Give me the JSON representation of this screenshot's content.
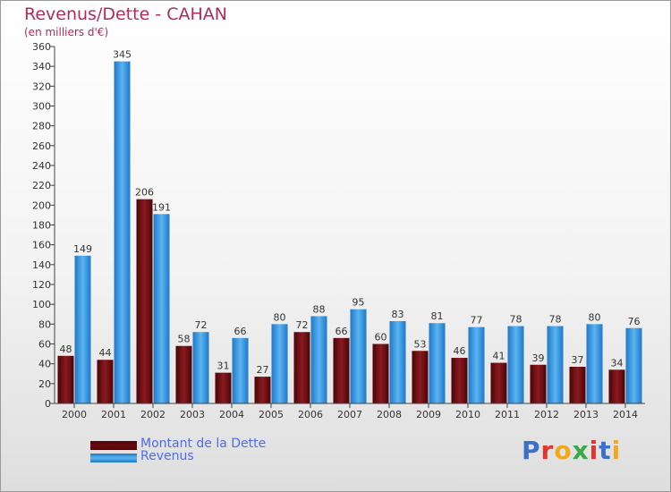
{
  "header": {
    "title": "Revenus/Dette - CAHAN",
    "subtitle": "(en milliers d'€)"
  },
  "colors": {
    "dette": "#6b0a0e",
    "revenus": "#2f8fdc",
    "title": "#b22a5b",
    "legend_text": "#4c6cf0"
  },
  "chart_data": {
    "type": "bar",
    "title": "Revenus/Dette - CAHAN",
    "subtitle": "(en milliers d'€)",
    "categories": [
      "2000",
      "2001",
      "2002",
      "2003",
      "2004",
      "2005",
      "2006",
      "2007",
      "2008",
      "2009",
      "2010",
      "2011",
      "2012",
      "2013",
      "2014"
    ],
    "series": [
      {
        "name": "Montant de la Dette",
        "values": [
          48,
          44,
          206,
          58,
          31,
          27,
          72,
          66,
          60,
          53,
          46,
          41,
          39,
          37,
          34
        ]
      },
      {
        "name": "Revenus",
        "values": [
          149,
          345,
          191,
          72,
          66,
          80,
          88,
          95,
          83,
          81,
          77,
          78,
          78,
          80,
          76
        ]
      }
    ],
    "ylim": [
      0,
      360
    ],
    "yticks": [
      0,
      20,
      40,
      60,
      80,
      100,
      120,
      140,
      160,
      180,
      200,
      220,
      240,
      260,
      280,
      300,
      320,
      340,
      360
    ],
    "grid": false,
    "legend_position": "bottom-left"
  },
  "legend": {
    "items": [
      {
        "label": "Montant de la Dette",
        "icon": "legend-swatch-dette"
      },
      {
        "label": "Revenus",
        "icon": "legend-swatch-revenus"
      }
    ]
  },
  "logo": {
    "letters": [
      "P",
      "r",
      "o",
      "x",
      "i",
      "t",
      "i"
    ],
    "colors": [
      "#3b6fc9",
      "#e2342d",
      "#f2a81d",
      "#3aa847",
      "#e2342d",
      "#3b6fc9",
      "#f2a81d"
    ]
  }
}
